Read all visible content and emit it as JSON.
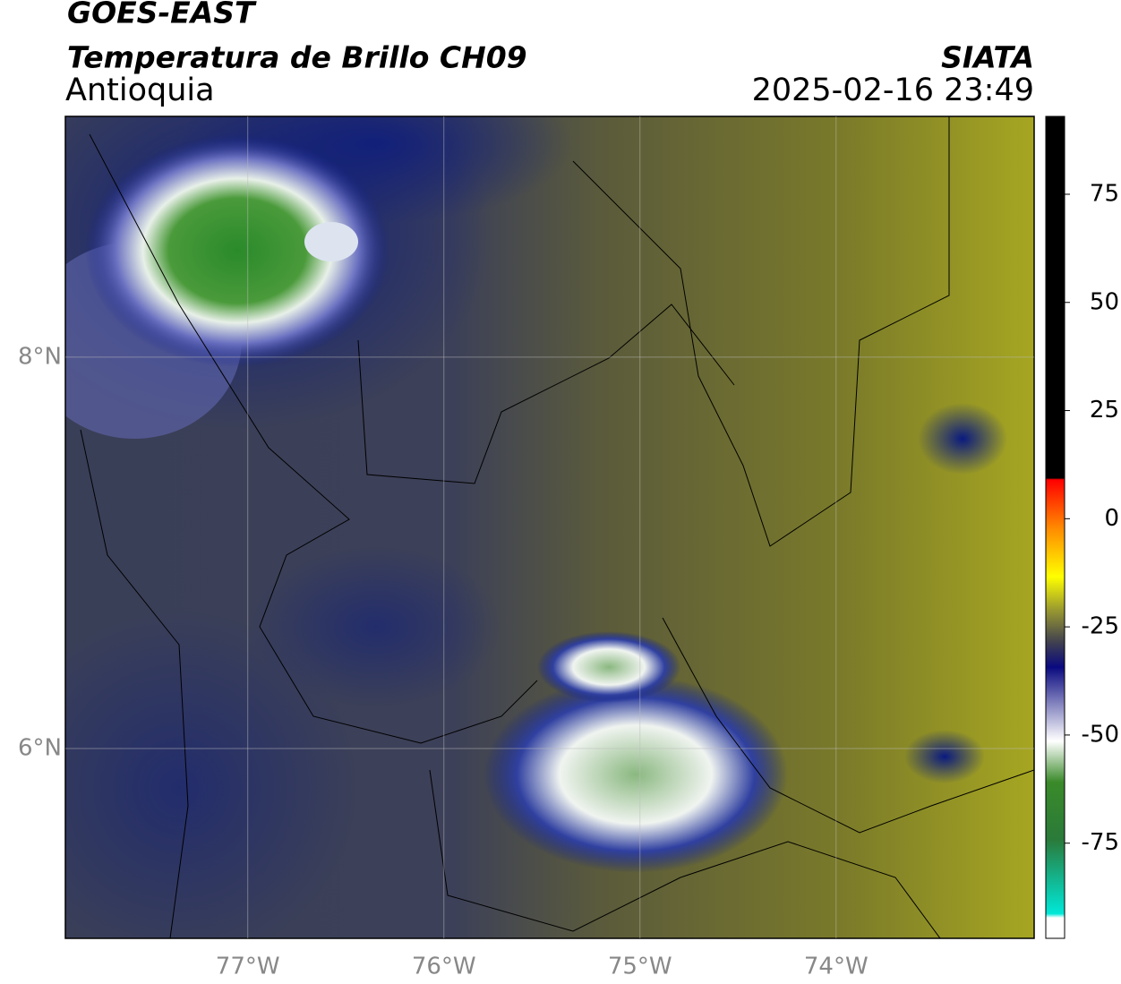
{
  "header": {
    "title": "GOES-EAST",
    "subtitle": "Temperatura de Brillo CH09",
    "region": "Antioquia",
    "source": "SIATA",
    "timestamp": "2025-02-16 23:49"
  },
  "map": {
    "xlim": [
      -77.93,
      -72.99
    ],
    "ylim": [
      5.03,
      9.23
    ],
    "xticks": [
      {
        "value": -77,
        "label": "77°W"
      },
      {
        "value": -76,
        "label": "76°W"
      },
      {
        "value": -75,
        "label": "75°W"
      },
      {
        "value": -74,
        "label": "74°W"
      }
    ],
    "yticks": [
      {
        "value": 8,
        "label": "8°N"
      },
      {
        "value": 6,
        "label": "6°N"
      }
    ]
  },
  "colorbar": {
    "lim": [
      -97,
      93
    ],
    "ticks": [
      75,
      50,
      25,
      0,
      -25,
      -50,
      -75
    ]
  }
}
